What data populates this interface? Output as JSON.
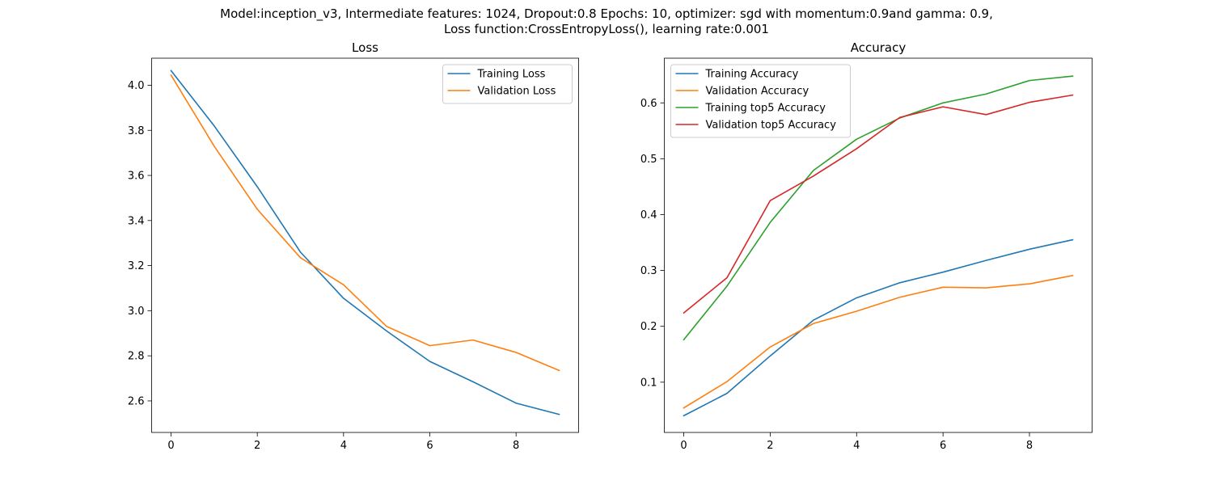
{
  "figure": {
    "title_line1": "Model:inception_v3, Intermediate features: 1024, Dropout:0.8 Epochs: 10, optimizer: sgd with momentum:0.9and gamma: 0.9,",
    "title_line2": "Loss function:CrossEntropyLoss(), learning rate:0.001"
  },
  "chart_data": [
    {
      "type": "line",
      "title": "Loss",
      "xlabel": "",
      "ylabel": "",
      "x": [
        0,
        1,
        2,
        3,
        4,
        5,
        6,
        7,
        8,
        9
      ],
      "xlim": [
        -0.45,
        9.45
      ],
      "ylim": [
        2.46,
        4.12
      ],
      "xticks": [
        0,
        2,
        4,
        6,
        8
      ],
      "yticks": [
        2.6,
        2.8,
        3.0,
        3.2,
        3.4,
        3.6,
        3.8,
        4.0
      ],
      "ytick_labels": [
        "2.6",
        "2.8",
        "3.0",
        "3.2",
        "3.4",
        "3.6",
        "3.8",
        "4.0"
      ],
      "legend_position": "top-right",
      "grid": false,
      "series": [
        {
          "name": "Training Loss",
          "color": "#1f77b4",
          "values": [
            4.065,
            3.82,
            3.55,
            3.26,
            3.055,
            2.91,
            2.775,
            2.685,
            2.59,
            2.54
          ]
        },
        {
          "name": "Validation Loss",
          "color": "#ff7f0e",
          "values": [
            4.045,
            3.73,
            3.45,
            3.235,
            3.115,
            2.93,
            2.845,
            2.87,
            2.815,
            2.735
          ]
        }
      ]
    },
    {
      "type": "line",
      "title": "Accuracy",
      "xlabel": "",
      "ylabel": "",
      "x": [
        0,
        1,
        2,
        3,
        4,
        5,
        6,
        7,
        8,
        9
      ],
      "xlim": [
        -0.45,
        9.45
      ],
      "ylim": [
        0.01,
        0.68
      ],
      "xticks": [
        0,
        2,
        4,
        6,
        8
      ],
      "yticks": [
        0.1,
        0.2,
        0.3,
        0.4,
        0.5,
        0.6
      ],
      "ytick_labels": [
        "0.1",
        "0.2",
        "0.3",
        "0.4",
        "0.5",
        "0.6"
      ],
      "legend_position": "top-left",
      "grid": false,
      "series": [
        {
          "name": "Training Accuracy",
          "color": "#1f77b4",
          "values": [
            0.04,
            0.08,
            0.147,
            0.211,
            0.251,
            0.278,
            0.297,
            0.318,
            0.338,
            0.355
          ]
        },
        {
          "name": "Validation Accuracy",
          "color": "#ff7f0e",
          "values": [
            0.054,
            0.101,
            0.163,
            0.205,
            0.227,
            0.252,
            0.27,
            0.269,
            0.276,
            0.291
          ]
        },
        {
          "name": "Training top5 Accuracy",
          "color": "#2ca02c",
          "values": [
            0.176,
            0.272,
            0.386,
            0.479,
            0.535,
            0.573,
            0.6,
            0.616,
            0.64,
            0.648
          ]
        },
        {
          "name": "Validation top5 Accuracy",
          "color": "#d62728",
          "values": [
            0.224,
            0.287,
            0.425,
            0.469,
            0.518,
            0.574,
            0.593,
            0.579,
            0.601,
            0.614
          ]
        }
      ]
    }
  ]
}
